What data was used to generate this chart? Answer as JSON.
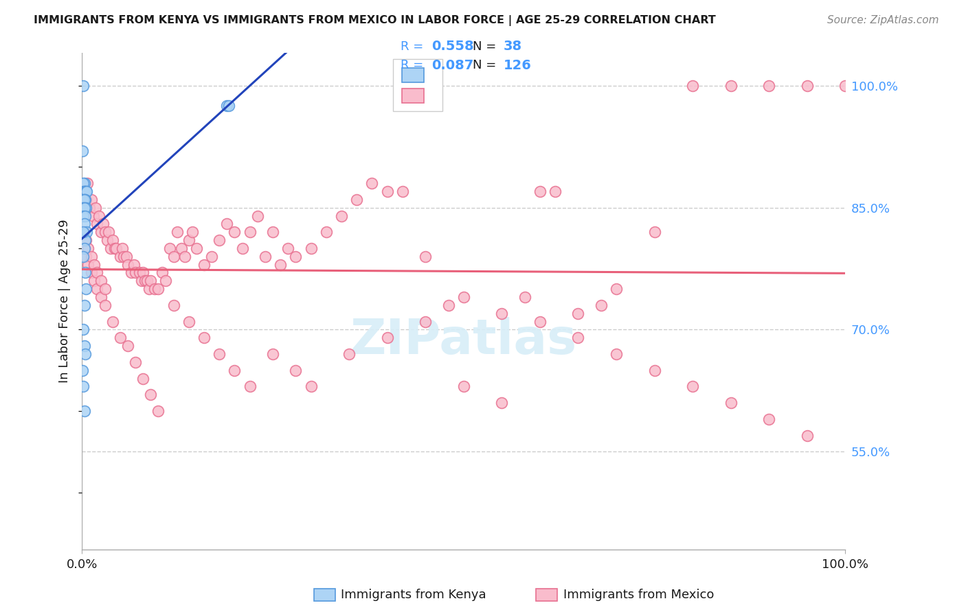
{
  "title": "IMMIGRANTS FROM KENYA VS IMMIGRANTS FROM MEXICO IN LABOR FORCE | AGE 25-29 CORRELATION CHART",
  "source": "Source: ZipAtlas.com",
  "ylabel": "In Labor Force | Age 25-29",
  "y_tick_labels_right": [
    "100.0%",
    "85.0%",
    "70.0%",
    "55.0%"
  ],
  "y_tick_values_right": [
    1.0,
    0.85,
    0.7,
    0.55
  ],
  "legend_bottom": [
    "Immigrants from Kenya",
    "Immigrants from Mexico"
  ],
  "kenya_R": 0.558,
  "kenya_N": 38,
  "mexico_R": 0.087,
  "mexico_N": 126,
  "kenya_fill_color": "#ADD4F5",
  "kenya_edge_color": "#5599DD",
  "mexico_fill_color": "#F9BCCC",
  "mexico_edge_color": "#E87090",
  "kenya_line_color": "#2244BB",
  "mexico_line_color": "#E8607A",
  "title_color": "#1a1a1a",
  "axis_label_color": "#1a1a1a",
  "right_tick_color": "#4499FF",
  "legend_text_color": "#1a1a1a",
  "legend_R_value_color": "#4499FF",
  "legend_N_color": "#1a1a1a",
  "legend_N_value_color": "#4499FF",
  "background_color": "#FFFFFF",
  "grid_color": "#CCCCCC",
  "watermark_color": "#D8EEF8",
  "kenya_x": [
    0.002,
    0.001,
    0.003,
    0.002,
    0.002,
    0.003,
    0.004,
    0.003,
    0.005,
    0.006,
    0.003,
    0.004,
    0.002,
    0.003,
    0.002,
    0.001,
    0.003,
    0.005,
    0.003,
    0.002,
    0.004,
    0.003,
    0.006,
    0.004,
    0.003,
    0.002,
    0.004,
    0.005,
    0.003,
    0.002,
    0.003,
    0.004,
    0.001,
    0.002,
    0.003,
    0.19,
    0.192,
    0.002
  ],
  "kenya_y": [
    1.0,
    0.92,
    0.88,
    0.88,
    0.87,
    0.87,
    0.87,
    0.87,
    0.87,
    0.87,
    0.86,
    0.86,
    0.86,
    0.86,
    0.85,
    0.85,
    0.85,
    0.85,
    0.85,
    0.84,
    0.84,
    0.83,
    0.82,
    0.81,
    0.8,
    0.79,
    0.77,
    0.75,
    0.73,
    0.7,
    0.68,
    0.67,
    0.65,
    0.63,
    0.6,
    0.975,
    0.975,
    0.82
  ],
  "mexico_x": [
    0.003,
    0.005,
    0.007,
    0.01,
    0.012,
    0.015,
    0.018,
    0.02,
    0.022,
    0.025,
    0.028,
    0.03,
    0.033,
    0.035,
    0.038,
    0.04,
    0.043,
    0.045,
    0.05,
    0.053,
    0.055,
    0.058,
    0.06,
    0.065,
    0.068,
    0.07,
    0.075,
    0.078,
    0.08,
    0.083,
    0.085,
    0.088,
    0.09,
    0.095,
    0.1,
    0.105,
    0.11,
    0.115,
    0.12,
    0.125,
    0.13,
    0.135,
    0.14,
    0.145,
    0.15,
    0.16,
    0.17,
    0.18,
    0.19,
    0.2,
    0.21,
    0.22,
    0.23,
    0.24,
    0.25,
    0.26,
    0.27,
    0.28,
    0.3,
    0.32,
    0.34,
    0.36,
    0.38,
    0.4,
    0.42,
    0.45,
    0.48,
    0.5,
    0.55,
    0.58,
    0.6,
    0.62,
    0.65,
    0.68,
    0.7,
    0.75,
    0.8,
    0.85,
    0.9,
    0.95,
    1.0,
    0.003,
    0.005,
    0.008,
    0.012,
    0.016,
    0.02,
    0.025,
    0.03,
    0.04,
    0.05,
    0.06,
    0.07,
    0.08,
    0.09,
    0.1,
    0.12,
    0.14,
    0.16,
    0.18,
    0.2,
    0.22,
    0.25,
    0.28,
    0.3,
    0.35,
    0.4,
    0.45,
    0.5,
    0.55,
    0.6,
    0.65,
    0.7,
    0.75,
    0.8,
    0.85,
    0.9,
    0.95,
    0.003,
    0.005,
    0.008,
    0.012,
    0.016,
    0.02,
    0.025,
    0.03
  ],
  "mexico_y": [
    0.87,
    0.86,
    0.88,
    0.85,
    0.86,
    0.84,
    0.85,
    0.83,
    0.84,
    0.82,
    0.83,
    0.82,
    0.81,
    0.82,
    0.8,
    0.81,
    0.8,
    0.8,
    0.79,
    0.8,
    0.79,
    0.79,
    0.78,
    0.77,
    0.78,
    0.77,
    0.77,
    0.76,
    0.77,
    0.76,
    0.76,
    0.75,
    0.76,
    0.75,
    0.75,
    0.77,
    0.76,
    0.8,
    0.79,
    0.82,
    0.8,
    0.79,
    0.81,
    0.82,
    0.8,
    0.78,
    0.79,
    0.81,
    0.83,
    0.82,
    0.8,
    0.82,
    0.84,
    0.79,
    0.82,
    0.78,
    0.8,
    0.79,
    0.8,
    0.82,
    0.84,
    0.86,
    0.88,
    0.87,
    0.87,
    0.79,
    0.73,
    0.74,
    0.72,
    0.74,
    0.87,
    0.87,
    0.72,
    0.73,
    0.75,
    0.82,
    1.0,
    1.0,
    1.0,
    1.0,
    1.0,
    0.8,
    0.79,
    0.78,
    0.77,
    0.76,
    0.75,
    0.74,
    0.73,
    0.71,
    0.69,
    0.68,
    0.66,
    0.64,
    0.62,
    0.6,
    0.73,
    0.71,
    0.69,
    0.67,
    0.65,
    0.63,
    0.67,
    0.65,
    0.63,
    0.67,
    0.69,
    0.71,
    0.63,
    0.61,
    0.71,
    0.69,
    0.67,
    0.65,
    0.63,
    0.61,
    0.59,
    0.57,
    0.82,
    0.81,
    0.8,
    0.79,
    0.78,
    0.77,
    0.76,
    0.75
  ]
}
